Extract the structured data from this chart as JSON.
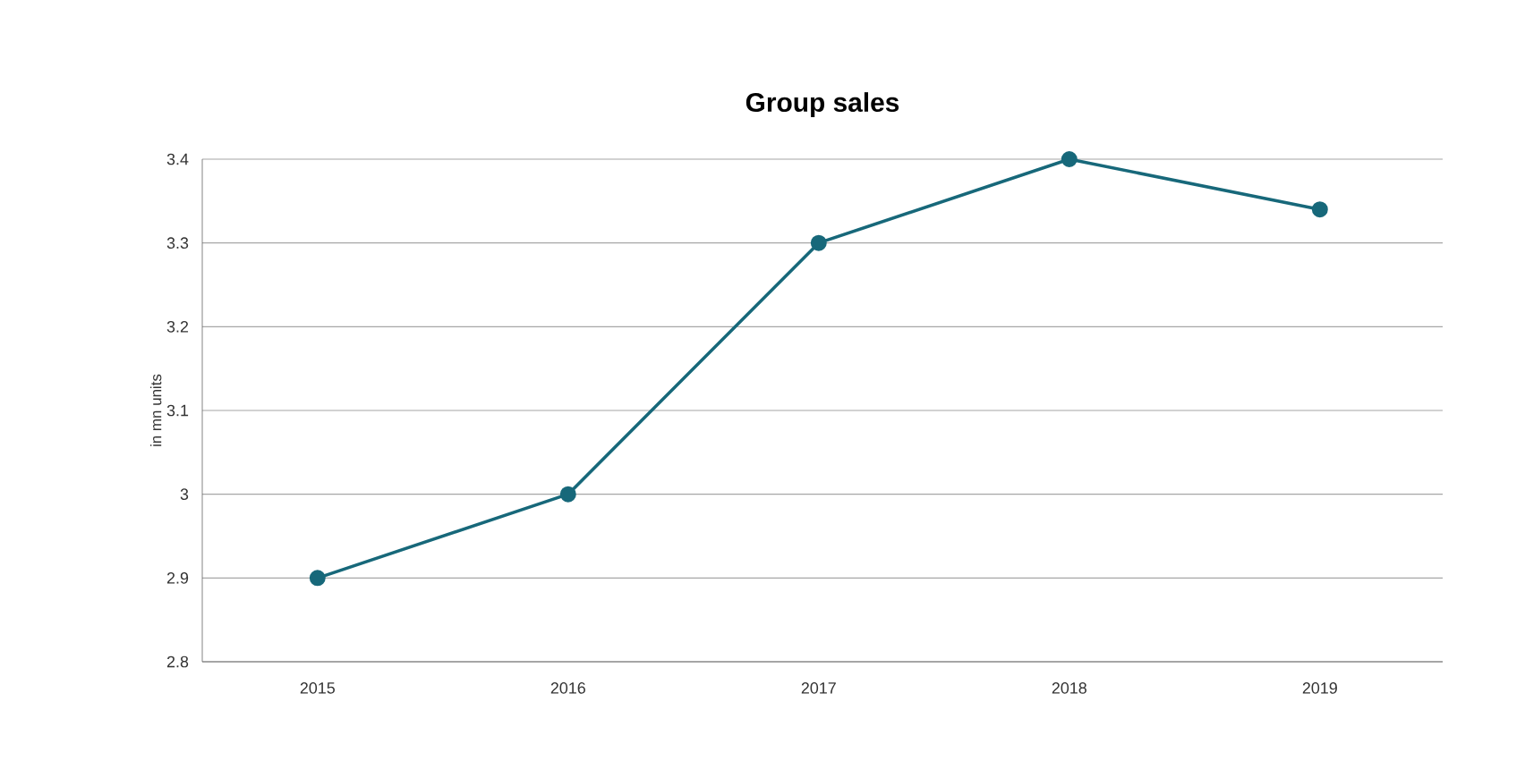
{
  "chart_data": {
    "type": "line",
    "title": "Group sales",
    "ylabel": "in mn units",
    "categories": [
      "2015",
      "2016",
      "2017",
      "2018",
      "2019"
    ],
    "series": [
      {
        "color": "#17687a",
        "values": [
          2.9,
          3.0,
          3.3,
          3.4,
          3.34
        ]
      }
    ],
    "ylim": [
      2.8,
      3.4
    ],
    "yticks": [
      2.8,
      2.9,
      {
        "value": 3,
        "label": "3"
      },
      3.1,
      3.2,
      3.3,
      3.4
    ],
    "grid": "y",
    "marker": "circle",
    "line_style": "solid"
  }
}
